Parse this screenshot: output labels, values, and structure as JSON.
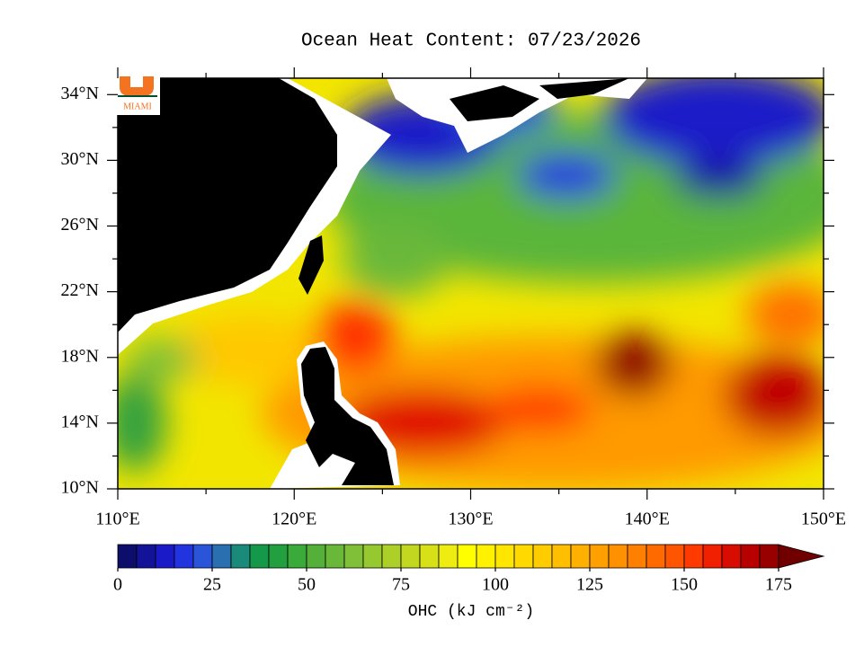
{
  "title": "Ocean Heat Content: 07/23/2026",
  "logo": "MIAMI",
  "map": {
    "xlim": [
      110,
      150
    ],
    "ylim": [
      10,
      35
    ],
    "lon_ticks": [
      {
        "value": 110,
        "label": "110°E"
      },
      {
        "value": 120,
        "label": "120°E"
      },
      {
        "value": 130,
        "label": "130°E"
      },
      {
        "value": 140,
        "label": "140°E"
      },
      {
        "value": 150,
        "label": "150°E"
      }
    ],
    "lon_minor_ticks": [
      115,
      125,
      135,
      145
    ],
    "lat_ticks": [
      {
        "value": 10,
        "label": "10°N"
      },
      {
        "value": 14,
        "label": "14°N"
      },
      {
        "value": 18,
        "label": "18°N"
      },
      {
        "value": 22,
        "label": "22°N"
      },
      {
        "value": 26,
        "label": "26°N"
      },
      {
        "value": 30,
        "label": "30°N"
      },
      {
        "value": 34,
        "label": "34°N"
      }
    ],
    "lat_minor_ticks": [
      12,
      16,
      20,
      24,
      28,
      32
    ]
  },
  "colorbar": {
    "label": "OHC (kJ cm⁻²)",
    "range": [
      0,
      175
    ],
    "ticks": [
      0,
      25,
      50,
      75,
      100,
      125,
      150,
      175
    ],
    "colors": [
      "#0d0d6b",
      "#13139a",
      "#1a1ac8",
      "#2233e0",
      "#2a55d8",
      "#2a6fb0",
      "#1a8a7a",
      "#14994a",
      "#22a040",
      "#3aaa3a",
      "#55b03a",
      "#6ab83a",
      "#80c038",
      "#96c830",
      "#acd028",
      "#c2d820",
      "#d8e018",
      "#eeec10",
      "#ffff00",
      "#fff200",
      "#ffe600",
      "#ffd900",
      "#ffcc00",
      "#ffbf00",
      "#ffb000",
      "#ffa000",
      "#ff9000",
      "#ff7f00",
      "#ff6a00",
      "#ff5500",
      "#ff3a00",
      "#f02000",
      "#d80c00",
      "#b80000",
      "#980000",
      "#700000"
    ]
  }
}
